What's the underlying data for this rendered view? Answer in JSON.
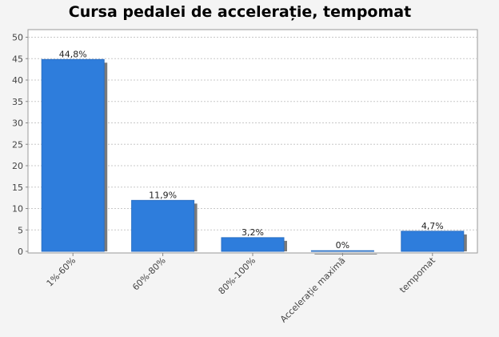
{
  "chart_data": {
    "type": "bar",
    "title": "Cursa pedalei de accelerație, tempomat",
    "categories": [
      "1%-60%",
      "60%-80%",
      "80%-100%",
      "Accelerație maximă",
      "tempomat"
    ],
    "values": [
      44.8,
      11.9,
      3.2,
      0,
      4.7
    ],
    "value_labels": [
      "44,8%",
      "11,9%",
      "3,2%",
      "0%",
      "4,7%"
    ],
    "yticks": [
      "0",
      "5",
      "10",
      "15",
      "20",
      "25",
      "30",
      "35",
      "40",
      "45",
      "50"
    ],
    "ylim": [
      0,
      51
    ],
    "grid": true,
    "legend": "none",
    "colors": {
      "bar": "#2e7ddc",
      "shadow": "#7a7a7a",
      "grid": "#c8c8c8"
    }
  }
}
